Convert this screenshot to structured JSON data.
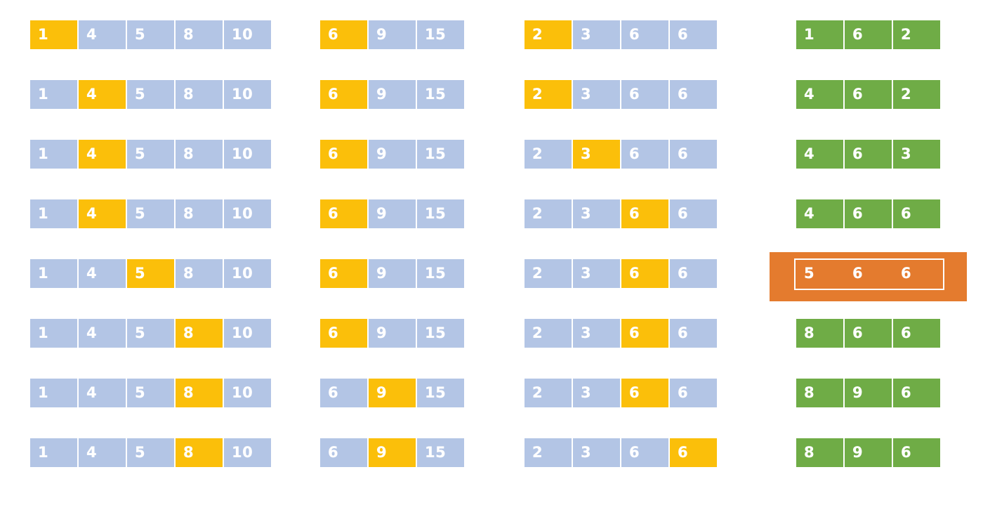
{
  "colors": {
    "default": "#b3c5e5",
    "active": "#fbbf0a",
    "result": "#6fac46",
    "highlight": "#e47b2e"
  },
  "rows": [
    {
      "a": {
        "values": [
          "1",
          "4",
          "5",
          "8",
          "10"
        ],
        "active": 0
      },
      "b": {
        "values": [
          "6",
          "9",
          "15"
        ],
        "active": 0
      },
      "c": {
        "values": [
          "2",
          "3",
          "6",
          "6"
        ],
        "active": 0
      },
      "result": {
        "values": [
          "1",
          "6",
          "2"
        ]
      }
    },
    {
      "a": {
        "values": [
          "1",
          "4",
          "5",
          "8",
          "10"
        ],
        "active": 1
      },
      "b": {
        "values": [
          "6",
          "9",
          "15"
        ],
        "active": 0
      },
      "c": {
        "values": [
          "2",
          "3",
          "6",
          "6"
        ],
        "active": 0
      },
      "result": {
        "values": [
          "4",
          "6",
          "2"
        ]
      }
    },
    {
      "a": {
        "values": [
          "1",
          "4",
          "5",
          "8",
          "10"
        ],
        "active": 1
      },
      "b": {
        "values": [
          "6",
          "9",
          "15"
        ],
        "active": 0
      },
      "c": {
        "values": [
          "2",
          "3",
          "6",
          "6"
        ],
        "active": 1
      },
      "result": {
        "values": [
          "4",
          "6",
          "3"
        ]
      }
    },
    {
      "a": {
        "values": [
          "1",
          "4",
          "5",
          "8",
          "10"
        ],
        "active": 1
      },
      "b": {
        "values": [
          "6",
          "9",
          "15"
        ],
        "active": 0
      },
      "c": {
        "values": [
          "2",
          "3",
          "6",
          "6"
        ],
        "active": 2
      },
      "result": {
        "values": [
          "4",
          "6",
          "6"
        ]
      }
    },
    {
      "a": {
        "values": [
          "1",
          "4",
          "5",
          "8",
          "10"
        ],
        "active": 2
      },
      "b": {
        "values": [
          "6",
          "9",
          "15"
        ],
        "active": 0
      },
      "c": {
        "values": [
          "2",
          "3",
          "6",
          "6"
        ],
        "active": 2
      },
      "result": {
        "values": [
          "5",
          "6",
          "6"
        ],
        "highlighted": true
      }
    },
    {
      "a": {
        "values": [
          "1",
          "4",
          "5",
          "8",
          "10"
        ],
        "active": 3
      },
      "b": {
        "values": [
          "6",
          "9",
          "15"
        ],
        "active": 0
      },
      "c": {
        "values": [
          "2",
          "3",
          "6",
          "6"
        ],
        "active": 2
      },
      "result": {
        "values": [
          "8",
          "6",
          "6"
        ]
      }
    },
    {
      "a": {
        "values": [
          "1",
          "4",
          "5",
          "8",
          "10"
        ],
        "active": 3
      },
      "b": {
        "values": [
          "6",
          "9",
          "15"
        ],
        "active": 1
      },
      "c": {
        "values": [
          "2",
          "3",
          "6",
          "6"
        ],
        "active": 2
      },
      "result": {
        "values": [
          "8",
          "9",
          "6"
        ]
      }
    },
    {
      "a": {
        "values": [
          "1",
          "4",
          "5",
          "8",
          "10"
        ],
        "active": 3
      },
      "b": {
        "values": [
          "6",
          "9",
          "15"
        ],
        "active": 1
      },
      "c": {
        "values": [
          "2",
          "3",
          "6",
          "6"
        ],
        "active": 3
      },
      "result": {
        "values": [
          "8",
          "9",
          "6"
        ]
      }
    }
  ]
}
